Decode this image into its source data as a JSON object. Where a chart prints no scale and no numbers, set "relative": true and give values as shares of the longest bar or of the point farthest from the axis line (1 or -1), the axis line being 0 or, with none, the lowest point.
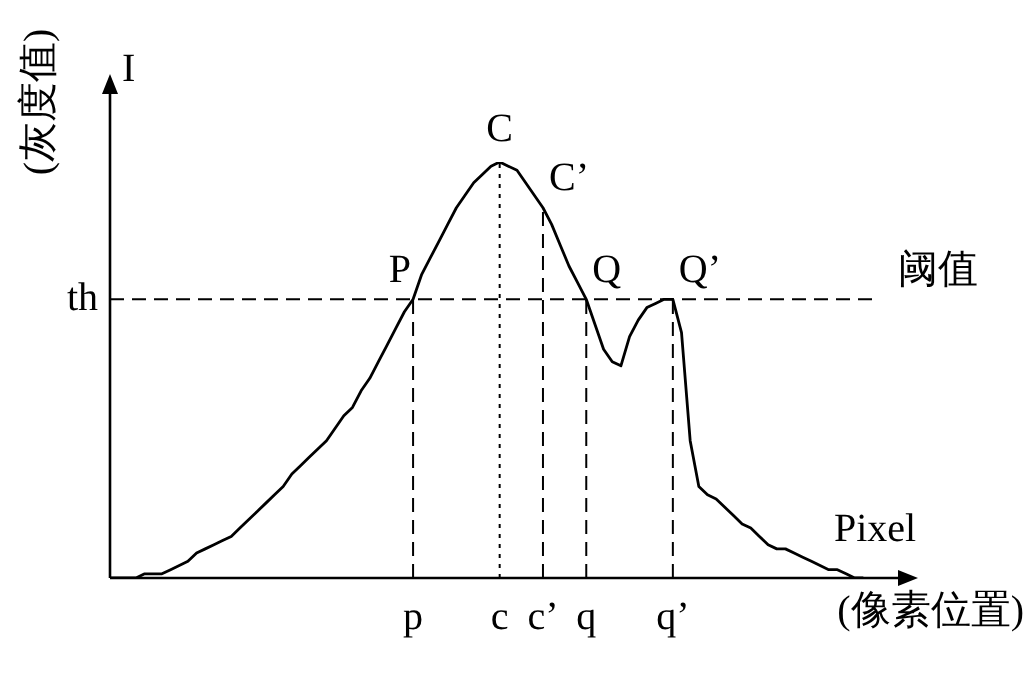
{
  "chart_data": {
    "type": "line",
    "relative": true,
    "ylabel": "(灰度值)",
    "xlabel": "(像素位置)",
    "categories": [
      null,
      null,
      null,
      null,
      null,
      null,
      null,
      null,
      null,
      null,
      null,
      null,
      null,
      null,
      null,
      null,
      null,
      null,
      null,
      null,
      null,
      null,
      null,
      null,
      null,
      null,
      null,
      null,
      null,
      null,
      null,
      null,
      null,
      null,
      null,
      "p",
      null,
      null,
      null,
      null,
      null,
      null,
      null,
      null,
      null,
      "c",
      null,
      null,
      null,
      null,
      "c’",
      null,
      null,
      null,
      null,
      "q",
      null,
      null,
      null,
      null,
      null,
      null,
      null,
      null,
      null,
      "q’",
      null,
      null,
      null,
      null,
      null,
      null,
      null,
      null,
      null,
      null,
      null,
      null,
      null,
      null,
      null,
      null,
      null,
      null,
      null,
      null,
      null,
      null,
      null,
      null,
      null,
      null
    ],
    "series": [
      {
        "color": "#000000",
        "values": [
          0,
          0,
          0,
          0,
          0.01,
          0.01,
          0.01,
          0.02,
          0.03,
          0.04,
          0.06,
          0.07,
          0.08,
          0.09,
          0.1,
          0.12,
          0.14,
          0.16,
          0.18,
          0.2,
          0.22,
          0.25,
          0.27,
          0.29,
          0.31,
          0.33,
          0.36,
          0.39,
          0.41,
          0.45,
          0.48,
          0.52,
          0.56,
          0.6,
          0.64,
          0.67,
          0.73,
          0.77,
          0.81,
          0.85,
          0.89,
          0.92,
          0.95,
          0.97,
          0.99,
          1,
          0.99,
          0.98,
          0.95,
          0.92,
          0.89,
          0.85,
          0.8,
          0.75,
          0.71,
          0.67,
          0.61,
          0.55,
          0.52,
          0.51,
          0.58,
          0.62,
          0.65,
          0.66,
          0.67,
          0.67,
          0.59,
          0.33,
          0.22,
          0.2,
          0.19,
          0.17,
          0.15,
          0.13,
          0.12,
          0.1,
          0.08,
          0.07,
          0.07,
          0.06,
          0.05,
          0.04,
          0.03,
          0.02,
          0.02,
          0.01,
          0,
          0,
          null,
          null,
          null,
          null
        ]
      }
    ],
    "ref_lines": [
      {
        "axis": "y",
        "value": 0.67,
        "label": "阈值",
        "line_style": "dashed"
      },
      {
        "axis": "x",
        "value": "p",
        "label": null,
        "line_style": "dashed"
      },
      {
        "axis": "x",
        "value": "c",
        "label": null,
        "line_style": "dotted"
      },
      {
        "axis": "x",
        "value": "c’",
        "label": null,
        "line_style": "dashed"
      },
      {
        "axis": "x",
        "value": "q",
        "label": null,
        "line_style": "dashed"
      },
      {
        "axis": "x",
        "value": "q’",
        "label": null,
        "line_style": "dashed"
      }
    ],
    "annotations": [
      {
        "text": "P",
        "x": "p",
        "y": 0.67
      },
      {
        "text": "C",
        "x": "c",
        "y": 1
      },
      {
        "text": "C’",
        "x": "c’",
        "y": 0.89
      },
      {
        "text": "Q",
        "x": "q",
        "y": 0.67
      },
      {
        "text": "Q’",
        "x": "q’",
        "y": 0.67
      },
      "I",
      "Pixel",
      "th"
    ],
    "grid": false,
    "legend": false,
    "marker": "none",
    "line_style": "solid"
  }
}
